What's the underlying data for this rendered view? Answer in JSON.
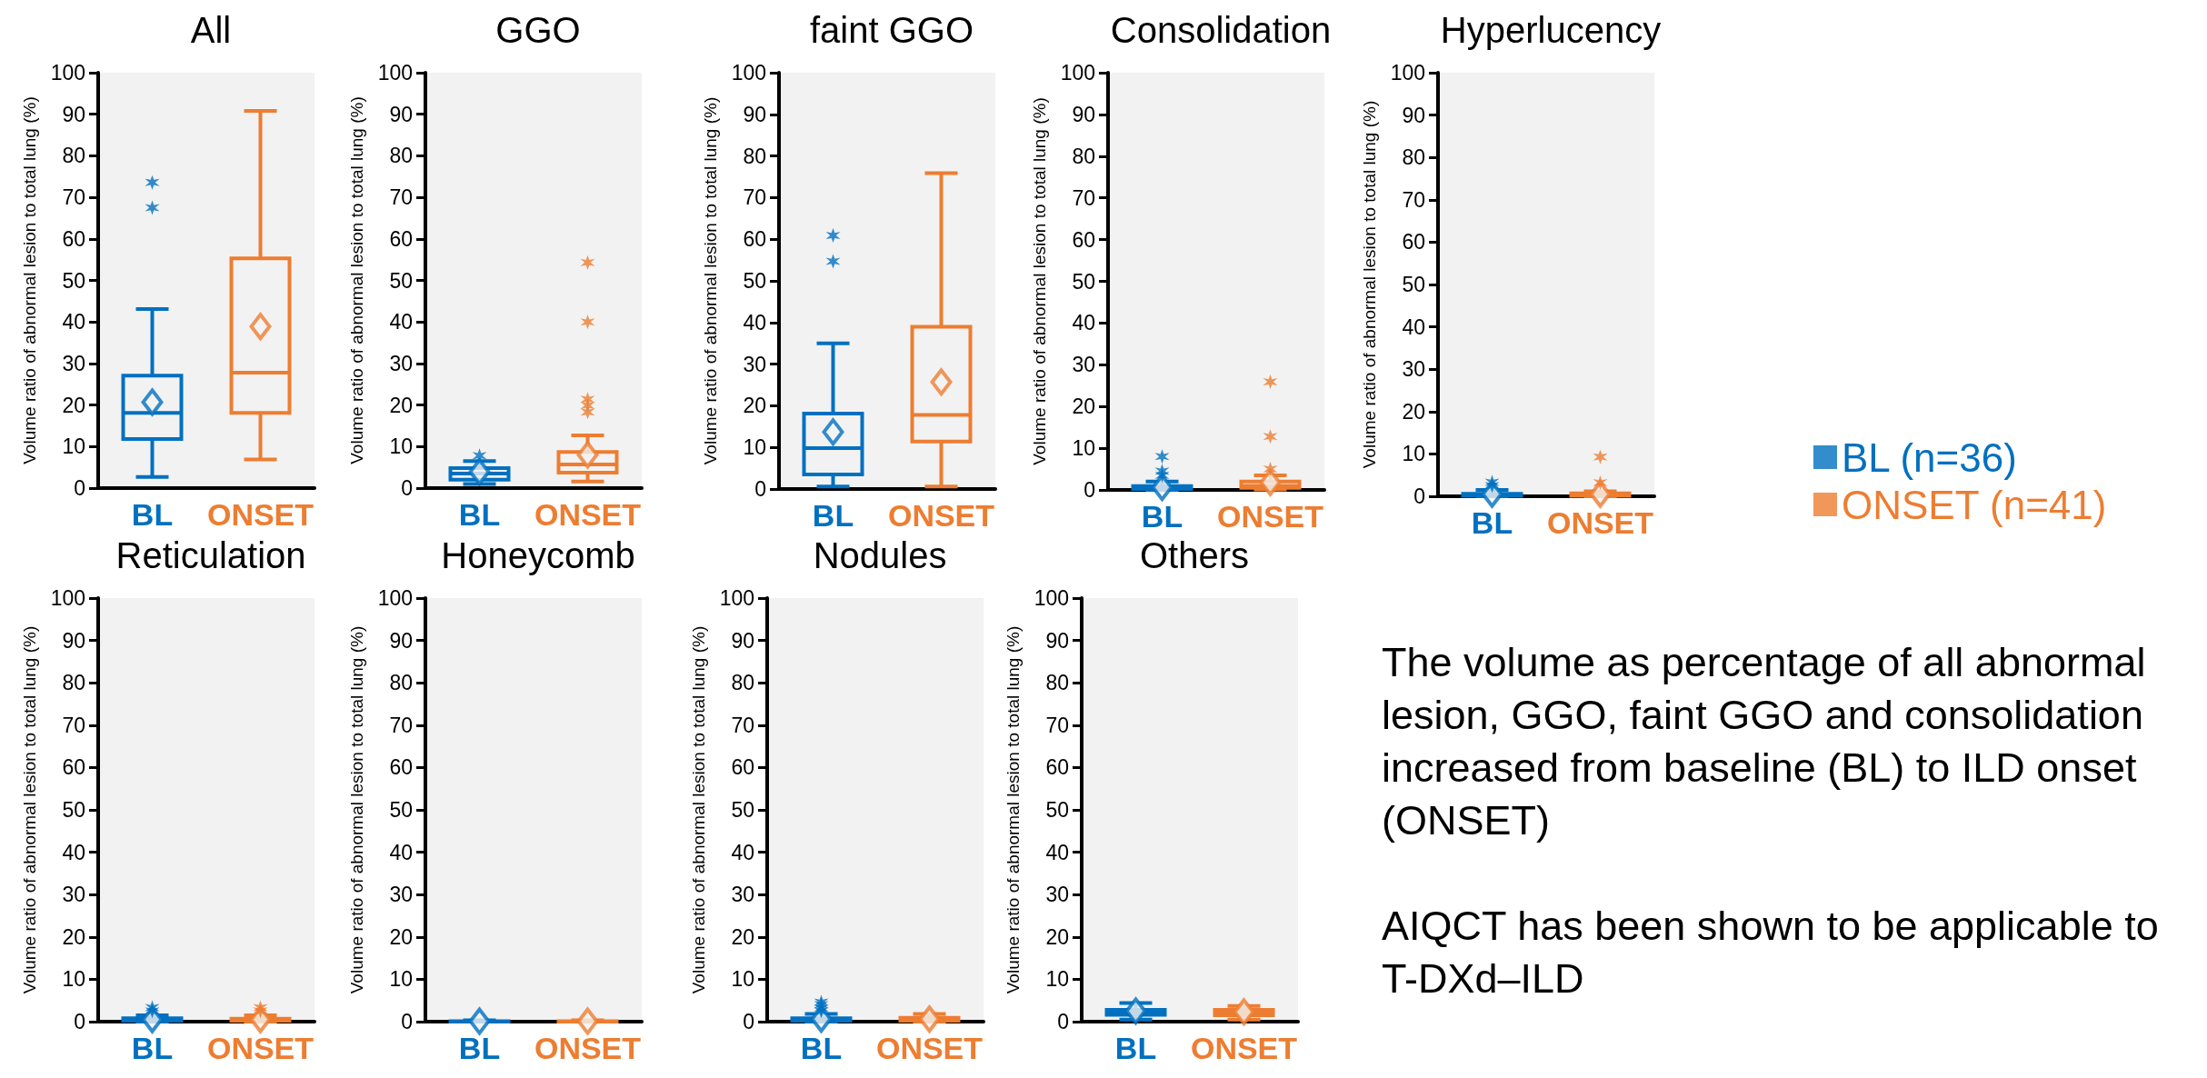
{
  "chart_data": [
    {
      "type": "box",
      "title": "All",
      "ylabel": "Volume ratio of abnormal lesion to total lung (%)",
      "categories": [
        "BL",
        "ONSET"
      ],
      "ylim": [
        0,
        100
      ],
      "yticks": [
        0,
        10,
        20,
        30,
        40,
        50,
        60,
        70,
        80,
        90,
        100
      ],
      "series": [
        {
          "color": "#0070c0",
          "boxes": [
            {
              "low": 2.7,
              "q1": 11.8,
              "median": 18.1,
              "q3": 27.1,
              "high": 43.1,
              "mean": 20.7,
              "outliers": [
                67.5,
                73.6
              ]
            },
            null
          ]
        },
        {
          "color": "#ed7d31",
          "boxes": [
            null,
            {
              "low": 6.9,
              "q1": 18.1,
              "median": 27.8,
              "q3": 55.3,
              "high": 90.8,
              "mean": 38.9
            }
          ]
        }
      ]
    },
    {
      "type": "box",
      "title": "GGO",
      "ylabel": "Volume ratio of abnormal lesion to total lung (%)",
      "categories": [
        "BL",
        "ONSET"
      ],
      "ylim": [
        0,
        100
      ],
      "yticks": [
        0,
        10,
        20,
        30,
        40,
        50,
        60,
        70,
        80,
        90,
        100
      ],
      "series": [
        {
          "color": "#0070c0",
          "boxes": [
            {
              "low": 1.0,
              "q1": 2.0,
              "median": 3.5,
              "q3": 4.8,
              "high": 6.5,
              "mean": 3.9,
              "outliers": [
                7.8
              ]
            },
            null
          ]
        },
        {
          "color": "#ed7d31",
          "boxes": [
            null,
            {
              "low": 1.6,
              "q1": 3.7,
              "median": 5.7,
              "q3": 8.7,
              "high": 12.7,
              "mean": 8.0,
              "outliers": [
                18.3,
                19.9,
                21.4,
                40.0,
                54.3
              ]
            }
          ]
        }
      ]
    },
    {
      "type": "box",
      "title": "faint GGO",
      "ylabel": "Volume ratio of abnormal lesion to total lung (%)",
      "categories": [
        "BL",
        "ONSET"
      ],
      "ylim": [
        0,
        100
      ],
      "yticks": [
        0,
        10,
        20,
        30,
        40,
        50,
        60,
        70,
        80,
        90,
        100
      ],
      "series": [
        {
          "color": "#0070c0",
          "boxes": [
            {
              "low": 0.6,
              "q1": 3.5,
              "median": 9.8,
              "q3": 18.1,
              "high": 35.0,
              "mean": 13.7,
              "outliers": [
                54.7,
                60.9
              ]
            },
            null
          ]
        },
        {
          "color": "#ed7d31",
          "boxes": [
            null,
            {
              "low": 0.6,
              "q1": 11.4,
              "median": 17.8,
              "q3": 39.0,
              "high": 75.9,
              "mean": 25.7
            }
          ]
        }
      ]
    },
    {
      "type": "box",
      "title": "Consolidation",
      "ylabel": "Volume ratio of abnormal lesion to total lung (%)",
      "categories": [
        "BL",
        "ONSET"
      ],
      "ylim": [
        0,
        100
      ],
      "yticks": [
        0,
        10,
        20,
        30,
        40,
        50,
        60,
        70,
        80,
        90,
        100
      ],
      "series": [
        {
          "color": "#0070c0",
          "boxes": [
            {
              "low": 0,
              "q1": 0.2,
              "median": 0.5,
              "q3": 0.9,
              "high": 2.0,
              "mean": 0.6,
              "outliers": [
                3.5,
                4.5,
                8.0
              ]
            },
            null
          ]
        },
        {
          "color": "#ed7d31",
          "boxes": [
            null,
            {
              "low": 0.1,
              "q1": 0.5,
              "median": 1.0,
              "q3": 2.0,
              "high": 3.5,
              "mean": 1.8,
              "outliers": [
                5.0,
                12.8,
                25.9
              ]
            }
          ]
        }
      ]
    },
    {
      "type": "box",
      "title": "Hyperlucency",
      "ylabel": "Volume ratio of abnormal lesion to total lung (%)",
      "categories": [
        "BL",
        "ONSET"
      ],
      "ylim": [
        0,
        100
      ],
      "yticks": [
        0,
        10,
        20,
        30,
        40,
        50,
        60,
        70,
        80,
        90,
        100
      ],
      "legend": "right",
      "series": [
        {
          "name": "BL (n=36)",
          "color": "#0070c0",
          "boxes": [
            {
              "low": 0,
              "q1": 0.1,
              "median": 0.3,
              "q3": 0.6,
              "high": 1.5,
              "mean": 0.5,
              "outliers": [
                2.5,
                3.3
              ]
            },
            null
          ]
        },
        {
          "name": "ONSET (n=41)",
          "color": "#ed7d31",
          "boxes": [
            null,
            {
              "low": 0,
              "q1": 0.1,
              "median": 0.3,
              "q3": 0.7,
              "high": 1.2,
              "mean": 0.5,
              "outliers": [
                3.2,
                9.3
              ]
            }
          ]
        }
      ]
    },
    {
      "type": "box",
      "title": "Reticulation",
      "ylabel": "Volume ratio of abnormal lesion to total lung (%)",
      "categories": [
        "BL",
        "ONSET"
      ],
      "ylim": [
        0,
        100
      ],
      "yticks": [
        0,
        10,
        20,
        30,
        40,
        50,
        60,
        70,
        80,
        90,
        100
      ],
      "series": [
        {
          "color": "#0070c0",
          "boxes": [
            {
              "low": 0,
              "q1": 0.2,
              "median": 0.4,
              "q3": 0.8,
              "high": 1.5,
              "mean": 0.5,
              "outliers": [
                2.5,
                3.3
              ]
            },
            null
          ]
        },
        {
          "color": "#ed7d31",
          "boxes": [
            null,
            {
              "low": 0,
              "q1": 0.2,
              "median": 0.4,
              "q3": 0.7,
              "high": 1.5,
              "mean": 0.5,
              "outliers": [
                2.5,
                3.3
              ]
            }
          ]
        }
      ]
    },
    {
      "type": "box",
      "title": "Honeycomb",
      "ylabel": "Volume ratio of abnormal lesion to total lung (%)",
      "categories": [
        "BL",
        "ONSET"
      ],
      "ylim": [
        0,
        100
      ],
      "yticks": [
        0,
        10,
        20,
        30,
        40,
        50,
        60,
        70,
        80,
        90,
        100
      ],
      "series": [
        {
          "color": "#0070c0",
          "boxes": [
            {
              "low": 0,
              "q1": 0,
              "median": 0,
              "q3": 0.1,
              "high": 0.3,
              "mean": 0.1
            },
            null
          ]
        },
        {
          "color": "#ed7d31",
          "boxes": [
            null,
            {
              "low": 0,
              "q1": 0,
              "median": 0,
              "q3": 0.1,
              "high": 0.3,
              "mean": 0.1
            }
          ]
        }
      ]
    },
    {
      "type": "box",
      "title": "Nodules",
      "ylabel": "Volume ratio of abnormal lesion to total lung (%)",
      "categories": [
        "BL",
        "ONSET"
      ],
      "ylim": [
        0,
        100
      ],
      "yticks": [
        0,
        10,
        20,
        30,
        40,
        50,
        60,
        70,
        80,
        90,
        100
      ],
      "series": [
        {
          "color": "#0070c0",
          "boxes": [
            {
              "low": 0,
              "q1": 0.2,
              "median": 0.5,
              "q3": 0.8,
              "high": 1.8,
              "mean": 0.6,
              "outliers": [
                2.5,
                3.2,
                4.0,
                4.6
              ]
            },
            null
          ]
        },
        {
          "color": "#ed7d31",
          "boxes": [
            null,
            {
              "low": 0,
              "q1": 0.2,
              "median": 0.5,
              "q3": 0.9,
              "high": 1.8,
              "mean": 0.6
            }
          ]
        }
      ]
    },
    {
      "type": "box",
      "title": "Others",
      "ylabel": "Volume ratio of abnormal lesion to total lung (%)",
      "categories": [
        "BL",
        "ONSET"
      ],
      "ylim": [
        0,
        100
      ],
      "yticks": [
        0,
        10,
        20,
        30,
        40,
        50,
        60,
        70,
        80,
        90,
        100
      ],
      "series": [
        {
          "color": "#0070c0",
          "boxes": [
            {
              "low": 0.5,
              "q1": 1.6,
              "median": 2.3,
              "q3": 2.8,
              "high": 4.4,
              "mean": 2.5
            },
            null
          ]
        },
        {
          "color": "#ed7d31",
          "boxes": [
            null,
            {
              "low": 0.5,
              "q1": 1.5,
              "median": 2.2,
              "q3": 2.8,
              "high": 3.7,
              "mean": 2.3
            }
          ]
        }
      ]
    },
    {
      "type": "other",
      "annotations": [
        "The volume as percentage of all abnormal lesion, GGO, faint GGO and consolidation increased from baseline (BL) to ILD onset (ONSET)",
        "AIQCT has been shown to be applicable to T-DXd–ILD"
      ]
    }
  ]
}
